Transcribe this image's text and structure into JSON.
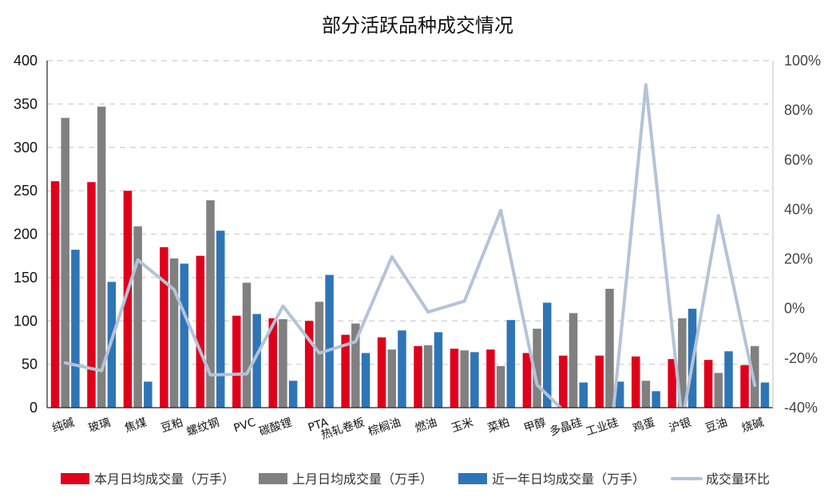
{
  "chart_data": {
    "type": "bar",
    "title": "部分活跃品种成交情况",
    "categories": [
      "纯碱",
      "玻璃",
      "焦煤",
      "豆粕",
      "螺纹钢",
      "PVC",
      "碳酸锂",
      "PTA",
      "热轧卷板",
      "棕榈油",
      "燃油",
      "玉米",
      "菜粕",
      "甲醇",
      "多晶硅",
      "工业硅",
      "鸡蛋",
      "沪银",
      "豆油",
      "烧碱"
    ],
    "series": [
      {
        "name": "本月日均成交量（万手）",
        "color": "#e0001b",
        "axis": "left",
        "values": [
          261,
          260,
          250,
          185,
          175,
          106,
          103,
          100,
          84,
          81,
          71,
          68,
          67,
          63,
          60,
          60,
          59,
          56,
          55,
          49
        ]
      },
      {
        "name": "上月日均成交量（万手）",
        "color": "#808080",
        "axis": "left",
        "values": [
          334,
          347,
          209,
          172,
          239,
          144,
          102,
          122,
          97,
          67,
          72,
          66,
          48,
          91,
          109,
          137,
          31,
          103,
          40,
          71
        ]
      },
      {
        "name": "近一年日均成交量（万手）",
        "color": "#2e75b6",
        "axis": "left",
        "values": [
          182,
          145,
          30,
          166,
          204,
          108,
          31,
          153,
          63,
          89,
          87,
          64,
          101,
          121,
          29,
          30,
          19,
          114,
          65,
          29
        ]
      },
      {
        "name": "成交量环比",
        "color": "#b4c3d8",
        "axis": "right",
        "type": "line",
        "values": [
          -21.9,
          -25.1,
          19.6,
          7.6,
          -26.8,
          -26.4,
          1.0,
          -18.0,
          -13.4,
          20.9,
          -1.4,
          3.0,
          39.6,
          -30.8,
          -45.0,
          -56.2,
          90.3,
          -45.6,
          37.5,
          -31.0
        ]
      }
    ],
    "y_left": {
      "min": 0,
      "max": 400,
      "ticks": [
        "0",
        "50",
        "100",
        "150",
        "200",
        "250",
        "300",
        "350",
        "400"
      ]
    },
    "y_right": {
      "min": -40,
      "max": 100,
      "ticks": [
        "-40%",
        "-20%",
        "0%",
        "20%",
        "40%",
        "60%",
        "80%",
        "100%"
      ]
    },
    "grid": true,
    "legend_position": "bottom"
  }
}
